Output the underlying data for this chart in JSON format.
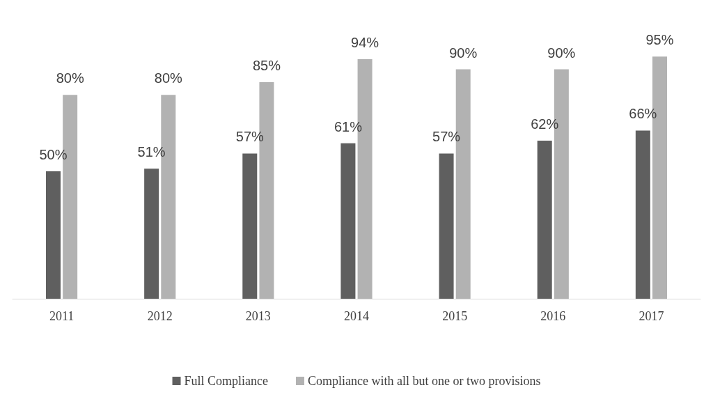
{
  "chart_data": {
    "type": "bar",
    "categories": [
      "2011",
      "2012",
      "2013",
      "2014",
      "2015",
      "2016",
      "2017"
    ],
    "series": [
      {
        "name": "Full Compliance",
        "color": "#5f5f5f",
        "values": [
          50,
          51,
          57,
          61,
          57,
          62,
          66
        ],
        "value_labels": [
          "50%",
          "51%",
          "57%",
          "61%",
          "57%",
          "62%",
          "66%"
        ]
      },
      {
        "name": "Compliance with all but one or two provisions",
        "color": "#b2b2b2",
        "values": [
          80,
          80,
          85,
          94,
          90,
          90,
          95
        ],
        "value_labels": [
          "80%",
          "80%",
          "85%",
          "94%",
          "90%",
          "90%",
          "95%"
        ]
      }
    ],
    "legend": "bottom"
  }
}
